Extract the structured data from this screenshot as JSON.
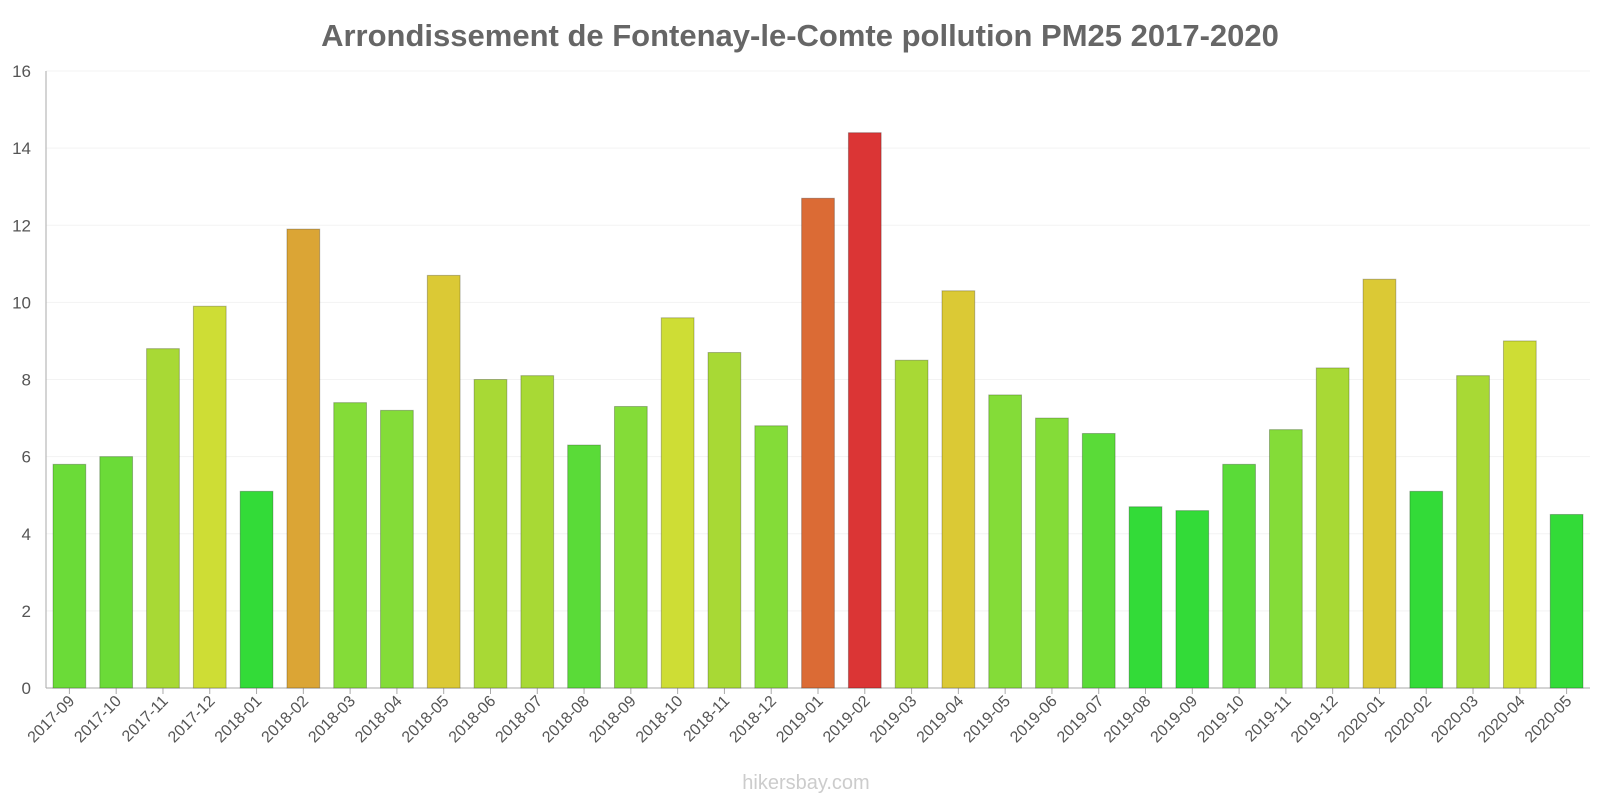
{
  "chart_data": {
    "type": "bar",
    "title": "Arrondissement de Fontenay-le-Comte pollution PM25 2017-2020",
    "xlabel": "",
    "ylabel": "",
    "ylim": [
      0,
      16
    ],
    "yticks": [
      0,
      2,
      4,
      6,
      8,
      10,
      12,
      14,
      16
    ],
    "categories": [
      "2017-09",
      "2017-10",
      "2017-11",
      "2017-12",
      "2018-01",
      "2018-02",
      "2018-03",
      "2018-04",
      "2018-05",
      "2018-06",
      "2018-07",
      "2018-08",
      "2018-09",
      "2018-10",
      "2018-11",
      "2018-12",
      "2019-01",
      "2019-02",
      "2019-03",
      "2019-04",
      "2019-05",
      "2019-06",
      "2019-07",
      "2019-08",
      "2019-09",
      "2019-10",
      "2019-11",
      "2019-12",
      "2020-01",
      "2020-02",
      "2020-03",
      "2020-04",
      "2020-05"
    ],
    "values": [
      5.8,
      6.0,
      8.8,
      9.9,
      5.1,
      11.9,
      7.4,
      7.2,
      10.7,
      8.0,
      8.1,
      6.3,
      7.3,
      9.6,
      8.7,
      6.8,
      12.7,
      14.4,
      8.5,
      10.3,
      7.6,
      7.0,
      6.6,
      4.7,
      4.6,
      5.8,
      6.7,
      8.3,
      10.6,
      5.1,
      8.1,
      9.0,
      4.5
    ],
    "bar_colors": [
      "#6bdb38",
      "#6bdb38",
      "#a8d935",
      "#cedd35",
      "#33db38",
      "#dba535",
      "#84dc38",
      "#84dc38",
      "#dbc935",
      "#a8d935",
      "#a8d935",
      "#5adb38",
      "#84dc38",
      "#cedd35",
      "#a8d935",
      "#84dc38",
      "#db6b35",
      "#db3535",
      "#a8d935",
      "#dbc935",
      "#84dc38",
      "#84dc38",
      "#5adb38",
      "#33db38",
      "#33db38",
      "#5adb38",
      "#84dc38",
      "#a8d935",
      "#dbc935",
      "#33db38",
      "#a8d935",
      "#cedd35",
      "#33db38"
    ],
    "watermark": "hikersbay.com"
  }
}
